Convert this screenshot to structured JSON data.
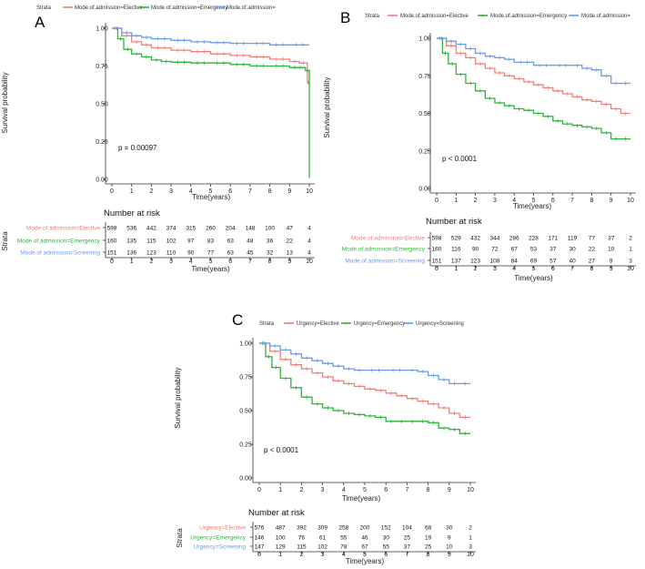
{
  "colors": {
    "elective": "#F07F76",
    "emergency": "#2EB43A",
    "screening": "#6B9BEA",
    "axis": "#333333"
  },
  "x_ticks": [
    0,
    1,
    2,
    3,
    4,
    5,
    6,
    7,
    8,
    9,
    10
  ],
  "y_ticks": [
    "0.00",
    "0.25",
    "0.50",
    "0.75",
    "1.00"
  ],
  "panels": [
    {
      "id": "A",
      "label": "A",
      "legend_title": "Strata",
      "legend_items": [
        "Mode.of.admission=Elective",
        "Mode.of.admission=Emergency",
        "Mode.of.admission="
      ],
      "ylabel": "Survival probability",
      "xlabel": "Time(years)",
      "pvalue": "p = 0.00097",
      "risk_title": "Number at risk",
      "risk_ylabel": "Strata",
      "risk_xlabel": "Time(years)",
      "risk_rows": [
        {
          "label": "Mode.of.admission=Elective",
          "values": [
            "598",
            "536",
            "442",
            "374",
            "315",
            "260",
            "204",
            "148",
            "100",
            "47",
            "4"
          ]
        },
        {
          "label": "Mode.of.admission=Emergency",
          "values": [
            "160",
            "135",
            "115",
            "102",
            "97",
            "83",
            "63",
            "48",
            "36",
            "22",
            "4"
          ]
        },
        {
          "label": "Mode.of.admission=Screening",
          "values": [
            "151",
            "136",
            "123",
            "110",
            "90",
            "77",
            "63",
            "45",
            "32",
            "13",
            "4"
          ]
        }
      ]
    },
    {
      "id": "B",
      "label": "B",
      "legend_title": "Strata",
      "legend_items": [
        "Mode.of.admission=Elective",
        "Mode.of.admission=Emergency",
        "Mode.of.admission="
      ],
      "ylabel": "Survival probability",
      "xlabel": "Time(years)",
      "pvalue": "p < 0.0001",
      "risk_title": "Number at risk",
      "risk_ylabel": "",
      "risk_xlabel": "Time(years)",
      "risk_rows": [
        {
          "label": "Mode.of.admission=Elective",
          "values": [
            "598",
            "529",
            "432",
            "344",
            "286",
            "228",
            "171",
            "119",
            "77",
            "37",
            "2"
          ]
        },
        {
          "label": "Mode.of.admission=Emergency",
          "values": [
            "160",
            "116",
            "90",
            "72",
            "67",
            "53",
            "37",
            "30",
            "22",
            "10",
            "1"
          ]
        },
        {
          "label": "Mode.of.admission=Screening",
          "values": [
            "151",
            "137",
            "123",
            "108",
            "84",
            "69",
            "57",
            "40",
            "27",
            "9",
            "3"
          ]
        }
      ]
    },
    {
      "id": "C",
      "label": "C",
      "legend_title": "Strata",
      "legend_items": [
        "Urgency=Elective",
        "Urgency=Emergency",
        "Urgency=Screening"
      ],
      "ylabel": "Survival probability",
      "xlabel": "Time(years)",
      "pvalue": "p < 0.0001",
      "risk_title": "Number at risk",
      "risk_ylabel": "Strata",
      "risk_xlabel": "Time(years)",
      "risk_rows": [
        {
          "label": "Urgency=Elective",
          "values": [
            "576",
            "487",
            "392",
            "309",
            "258",
            "200",
            "152",
            "104",
            "68",
            "30",
            "2"
          ]
        },
        {
          "label": "Urgency=Emergency",
          "values": [
            "146",
            "100",
            "76",
            "61",
            "55",
            "46",
            "30",
            "25",
            "19",
            "9",
            "1"
          ]
        },
        {
          "label": "Urgency=Screening",
          "values": [
            "147",
            "129",
            "115",
            "102",
            "78",
            "67",
            "55",
            "37",
            "25",
            "10",
            "3"
          ]
        }
      ]
    }
  ],
  "chart_data": [
    {
      "type": "line",
      "title": "A",
      "xlabel": "Time(years)",
      "ylabel": "Survival probability",
      "xlim": [
        0,
        10
      ],
      "ylim": [
        0,
        1
      ],
      "series": [
        {
          "name": "Mode.of.admission=Elective",
          "x": [
            0,
            0.5,
            1,
            1.5,
            2,
            3,
            4,
            5,
            6,
            7,
            8,
            9,
            9.5,
            9.9,
            10
          ],
          "y": [
            1,
            0.95,
            0.91,
            0.89,
            0.87,
            0.855,
            0.845,
            0.83,
            0.82,
            0.81,
            0.795,
            0.78,
            0.77,
            0.64,
            0.64
          ]
        },
        {
          "name": "Mode.of.admission=Emergency",
          "x": [
            0,
            0.3,
            0.6,
            1,
            1.5,
            2,
            2.5,
            3,
            4,
            5,
            6,
            7,
            8,
            9,
            9.8,
            10,
            10
          ],
          "y": [
            1,
            0.93,
            0.86,
            0.83,
            0.81,
            0.79,
            0.78,
            0.775,
            0.77,
            0.77,
            0.76,
            0.75,
            0.75,
            0.74,
            0.72,
            0.72,
            0.01
          ]
        },
        {
          "name": "Mode.of.admission=Screening",
          "x": [
            0,
            0.5,
            1,
            1.5,
            2,
            3,
            4,
            5,
            6,
            7,
            8,
            9,
            10
          ],
          "y": [
            1,
            0.97,
            0.95,
            0.94,
            0.93,
            0.92,
            0.91,
            0.905,
            0.9,
            0.9,
            0.89,
            0.89,
            0.89
          ]
        }
      ]
    },
    {
      "type": "line",
      "title": "B",
      "xlabel": "Time(years)",
      "ylabel": "Survival probability",
      "xlim": [
        0,
        10
      ],
      "ylim": [
        0,
        1
      ],
      "series": [
        {
          "name": "Mode.of.admission=Elective",
          "x": [
            0,
            0.5,
            1,
            1.5,
            2,
            2.5,
            3,
            3.5,
            4,
            4.5,
            5,
            5.5,
            6,
            6.5,
            7,
            7.5,
            8,
            8.5,
            9,
            9.5,
            10
          ],
          "y": [
            1,
            0.95,
            0.9,
            0.87,
            0.83,
            0.8,
            0.77,
            0.75,
            0.73,
            0.71,
            0.69,
            0.67,
            0.65,
            0.63,
            0.61,
            0.59,
            0.58,
            0.56,
            0.53,
            0.5,
            0.5
          ]
        },
        {
          "name": "Mode.of.admission=Emergency",
          "x": [
            0,
            0.3,
            0.6,
            1,
            1.5,
            2,
            2.5,
            3,
            3.5,
            4,
            4.5,
            5,
            5.5,
            6,
            6.5,
            7,
            7.5,
            8,
            8.5,
            9,
            9.5,
            10
          ],
          "y": [
            1,
            0.9,
            0.83,
            0.76,
            0.7,
            0.65,
            0.6,
            0.57,
            0.55,
            0.53,
            0.52,
            0.5,
            0.48,
            0.45,
            0.43,
            0.42,
            0.41,
            0.4,
            0.37,
            0.33,
            0.33,
            0.33
          ]
        },
        {
          "name": "Mode.of.admission=Screening",
          "x": [
            0,
            0.5,
            1,
            1.5,
            2,
            2.5,
            3,
            3.5,
            4,
            5,
            6,
            7,
            7.5,
            8,
            8.5,
            9,
            9.5,
            10
          ],
          "y": [
            1,
            0.98,
            0.96,
            0.93,
            0.9,
            0.88,
            0.87,
            0.86,
            0.84,
            0.82,
            0.82,
            0.82,
            0.8,
            0.79,
            0.75,
            0.7,
            0.7,
            0.7
          ]
        }
      ]
    },
    {
      "type": "line",
      "title": "C",
      "xlabel": "Time(years)",
      "ylabel": "Survival probability",
      "xlim": [
        0,
        10
      ],
      "ylim": [
        0,
        1
      ],
      "series": [
        {
          "name": "Urgency=Elective",
          "x": [
            0,
            0.5,
            1,
            1.5,
            2,
            2.5,
            3,
            3.5,
            4,
            4.5,
            5,
            5.5,
            6,
            6.5,
            7,
            7.5,
            8,
            8.5,
            9,
            9.5,
            10
          ],
          "y": [
            1,
            0.94,
            0.88,
            0.84,
            0.81,
            0.78,
            0.75,
            0.72,
            0.7,
            0.68,
            0.66,
            0.65,
            0.63,
            0.61,
            0.59,
            0.57,
            0.55,
            0.52,
            0.48,
            0.45,
            0.45
          ]
        },
        {
          "name": "Urgency=Emergency",
          "x": [
            0,
            0.3,
            0.6,
            1,
            1.5,
            2,
            2.5,
            3,
            3.5,
            4,
            4.5,
            5,
            5.5,
            6,
            6.5,
            7,
            7.5,
            8,
            8.5,
            9,
            9.5,
            10
          ],
          "y": [
            1,
            0.9,
            0.82,
            0.74,
            0.67,
            0.6,
            0.55,
            0.52,
            0.5,
            0.48,
            0.47,
            0.46,
            0.45,
            0.42,
            0.42,
            0.42,
            0.42,
            0.41,
            0.37,
            0.36,
            0.33,
            0.33
          ]
        },
        {
          "name": "Urgency=Screening",
          "x": [
            0,
            0.5,
            1,
            1.5,
            2,
            2.5,
            3,
            3.5,
            4,
            4.5,
            5,
            6,
            7,
            7.5,
            8,
            8.5,
            9,
            9.5,
            10
          ],
          "y": [
            1,
            0.98,
            0.95,
            0.92,
            0.89,
            0.87,
            0.85,
            0.83,
            0.81,
            0.8,
            0.8,
            0.8,
            0.8,
            0.79,
            0.76,
            0.73,
            0.7,
            0.7,
            0.7
          ]
        }
      ]
    }
  ]
}
